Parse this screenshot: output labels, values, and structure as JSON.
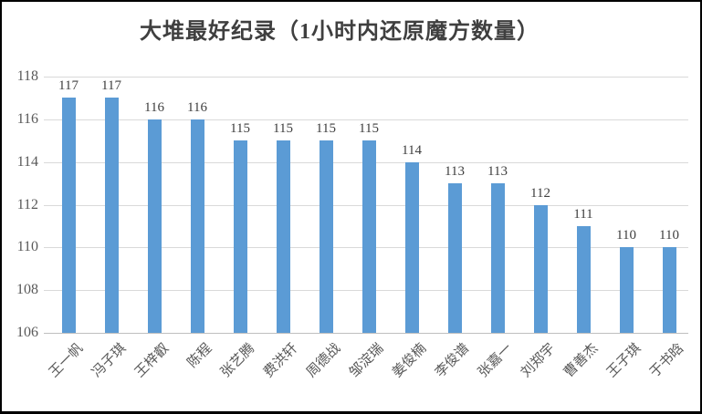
{
  "chart_data": {
    "type": "bar",
    "title": "大堆最好纪录（1小时内还原魔方数量）",
    "categories": [
      "王一帆",
      "冯子琪",
      "王梓叡",
      "陈程",
      "张艺腾",
      "费洪轩",
      "周德战",
      "邹淀瑞",
      "姜俊楠",
      "李俊谱",
      "张嘉一",
      "刘郑宇",
      "曹善杰",
      "王子琪",
      "于书晗"
    ],
    "values": [
      117,
      117,
      116,
      116,
      115,
      115,
      115,
      115,
      114,
      113,
      113,
      112,
      111,
      110,
      110
    ],
    "xlabel": "",
    "ylabel": "",
    "ylim": [
      106,
      118
    ],
    "yticks": [
      106,
      108,
      110,
      112,
      114,
      116,
      118
    ],
    "grid": true,
    "legend": false,
    "data_labels": true,
    "colors": {
      "bar": "#5b9bd5",
      "gridline": "#d9d9d9",
      "axis_line": "#bfbfbf",
      "tick_label": "#595959",
      "data_label": "#3f3f3f",
      "title": "#3f3f3f",
      "background": "#ffffff",
      "frame_border": "#000000"
    }
  }
}
